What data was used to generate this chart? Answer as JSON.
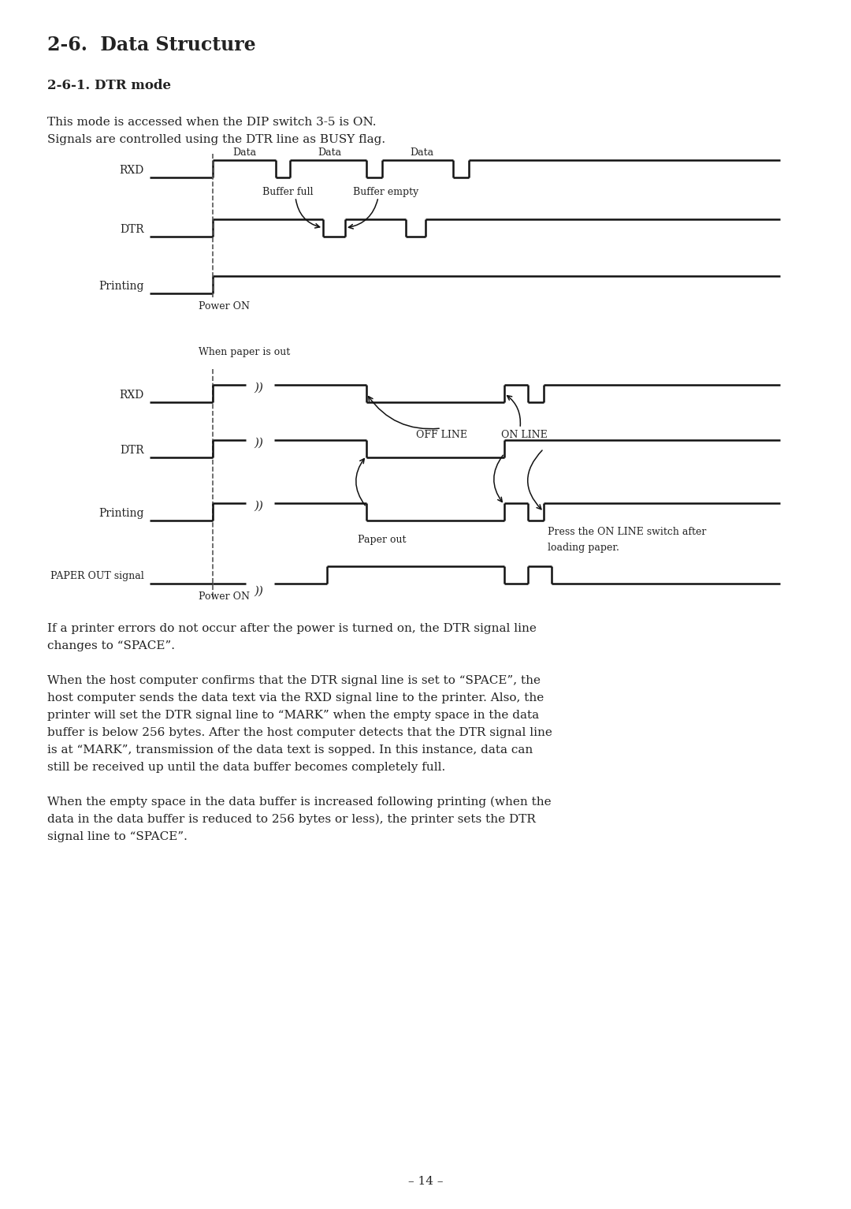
{
  "title": "2-6.  Data Structure",
  "subtitle": "2-6-1. DTR mode",
  "intro_text_1": "This mode is accessed when the DIP switch 3-5 is ON.",
  "intro_text_2": "Signals are controlled using the DTR line as BUSY flag.",
  "bg_color": "#ffffff",
  "text_color": "#222222",
  "line_color": "#111111",
  "footer": "– 14 –",
  "body_text_1a": "If a printer errors do not occur after the power is turned on, the DTR signal line",
  "body_text_1b": "changes to “SPACE”.",
  "body_text_2": "When the host computer confirms that the DTR signal line is set to “SPACE”, the\nhost computer sends the data text via the RXD signal line to the printer. Also, the\nprinter will set the DTR signal line to “MARK” when the empty space in the data\nbuffer is below 256 bytes. After the host computer detects that the DTR signal line\nis at “MARK”, transmission of the data text is sopped. In this instance, data can\nstill be received up until the data buffer becomes completely full.",
  "body_text_3": "When the empty space in the data buffer is increased following printing (when the\ndata in the data buffer is reduced to 256 bytes or less), the printer sets the DTR\nsignal line to “SPACE”."
}
